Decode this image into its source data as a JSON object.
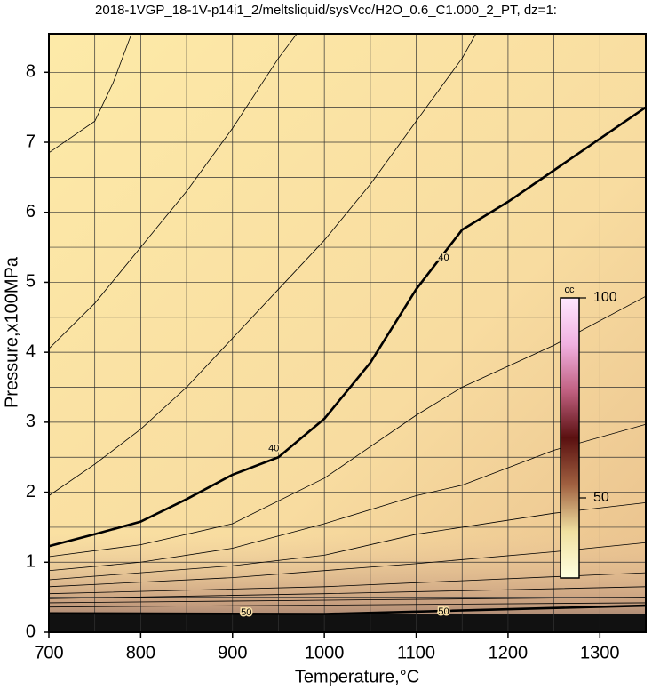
{
  "chart_data": {
    "type": "contour",
    "title": "2018-1VGP_18-1V-p14i1_2/meltsliquid/sysVcc/H2O_0.6_C1.000_2_PT, dz=1:",
    "x_label": "Temperature,°C",
    "y_label": "Pressure,x100MPa",
    "xlim": [
      700,
      1350
    ],
    "ylim": [
      0,
      8.55
    ],
    "xticks": [
      700,
      800,
      900,
      1000,
      1100,
      1200,
      1300
    ],
    "yticks": [
      0,
      1,
      2,
      3,
      4,
      5,
      6,
      7,
      8
    ],
    "xgrid": [
      750,
      800,
      850,
      900,
      950,
      1000,
      1050,
      1100,
      1150,
      1200,
      1250,
      1300
    ],
    "ygrid": [
      0.5,
      1,
      1.5,
      2,
      2.5,
      3,
      3.5,
      4,
      4.5,
      5,
      5.5,
      6,
      6.5,
      7,
      7.5,
      8
    ],
    "grid": true,
    "contours": [
      {
        "level": 40,
        "bold": true,
        "x": [
          700,
          750,
          800,
          850,
          900,
          950,
          1000,
          1050,
          1100,
          1150,
          1200,
          1250,
          1300,
          1350
        ],
        "y": [
          1.23,
          1.4,
          1.58,
          1.9,
          2.25,
          2.5,
          3.05,
          3.85,
          4.9,
          5.75,
          6.15,
          6.6,
          7.05,
          7.5
        ],
        "labels": [
          {
            "text": "40",
            "x": 945,
            "y": 2.62
          },
          {
            "text": "40",
            "x": 1130,
            "y": 5.35
          }
        ]
      },
      {
        "x": [
          700,
          750,
          800,
          850,
          900,
          950,
          1000,
          1050,
          1100,
          1150,
          1165
        ],
        "y": [
          1.95,
          2.4,
          2.9,
          3.5,
          4.2,
          4.9,
          5.6,
          6.4,
          7.3,
          8.2,
          8.55
        ]
      },
      {
        "x": [
          700,
          750,
          800,
          850,
          900,
          950,
          970
        ],
        "y": [
          4.05,
          4.7,
          5.5,
          6.3,
          7.2,
          8.2,
          8.55
        ]
      },
      {
        "x": [
          700,
          750,
          770,
          790
        ],
        "y": [
          6.85,
          7.3,
          7.85,
          8.55
        ]
      },
      {
        "x": [
          700,
          800,
          900,
          1000,
          1100,
          1150,
          1250,
          1350
        ],
        "y": [
          1.08,
          1.25,
          1.55,
          2.2,
          3.1,
          3.5,
          4.1,
          4.8
        ]
      },
      {
        "x": [
          700,
          800,
          900,
          1000,
          1100,
          1150,
          1250,
          1350
        ],
        "y": [
          0.88,
          1.0,
          1.2,
          1.55,
          1.95,
          2.1,
          2.6,
          2.97
        ]
      },
      {
        "x": [
          700,
          900,
          1000,
          1100,
          1250,
          1350
        ],
        "y": [
          0.75,
          0.95,
          1.1,
          1.4,
          1.7,
          1.85
        ]
      },
      {
        "x": [
          700,
          900,
          1100,
          1250,
          1350
        ],
        "y": [
          0.65,
          0.78,
          0.98,
          1.15,
          1.28
        ]
      },
      {
        "x": [
          700,
          1000,
          1350
        ],
        "y": [
          0.55,
          0.65,
          0.85
        ]
      },
      {
        "x": [
          700,
          1000,
          1350
        ],
        "y": [
          0.48,
          0.55,
          0.65
        ]
      },
      {
        "x": [
          700,
          1350
        ],
        "y": [
          0.42,
          0.5
        ]
      },
      {
        "x": [
          700,
          1350
        ],
        "y": [
          0.36,
          0.42
        ]
      },
      {
        "level": 50,
        "bold": true,
        "x": [
          700,
          1000,
          1350
        ],
        "y": [
          0.27,
          0.26,
          0.38
        ],
        "labels": [
          {
            "text": "50",
            "x": 915,
            "y": 0.28
          },
          {
            "text": "50",
            "x": 1130,
            "y": 0.29
          }
        ]
      }
    ],
    "colorbar": {
      "label": "cc",
      "lim": [
        30,
        100
      ],
      "ticks": [
        50,
        100
      ],
      "colors": [
        "#ffffe0",
        "#f0e0a0",
        "#a06040",
        "#5a1010",
        "#c06080",
        "#f0b0e0",
        "#ffe8ff"
      ]
    }
  }
}
